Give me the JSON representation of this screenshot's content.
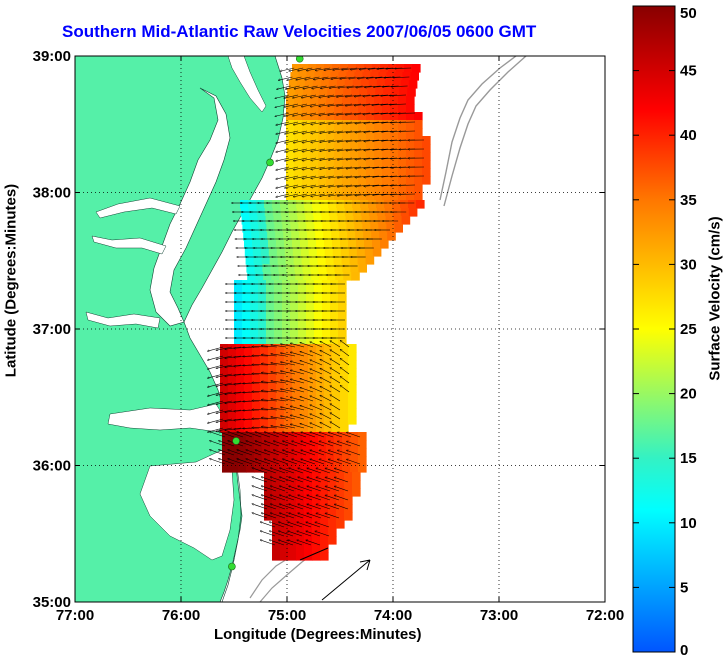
{
  "title": "Southern Mid-Atlantic Raw Velocities 2007/06/05 0600 GMT",
  "xlabel": "Longitude (Degrees:Minutes)",
  "ylabel": "Latitude (Degrees:Minutes)",
  "x_ticks": [
    "77:00",
    "76:00",
    "75:00",
    "74:00",
    "73:00",
    "72:00"
  ],
  "y_ticks": [
    "39:00",
    "38:00",
    "37:00",
    "36:00",
    "35:00"
  ],
  "colorbar": {
    "label": "Surface Velocity (cm/s)",
    "ticks": [
      "50",
      "45",
      "40",
      "35",
      "30",
      "25",
      "20",
      "15",
      "10",
      "5",
      "0"
    ],
    "range": [
      0,
      50
    ],
    "colormap": "jet"
  },
  "colors": {
    "land": "#55f0a8",
    "title": "#0000ff",
    "grid": "#000000",
    "bathymetry": "#999999",
    "station": "#33dd33"
  },
  "map": {
    "lon_range": [
      -77,
      -72
    ],
    "lat_range": [
      35,
      39
    ],
    "stations": [
      {
        "lon": -74.88,
        "lat": 38.98
      },
      {
        "lon": -75.16,
        "lat": 38.22
      },
      {
        "lon": -75.48,
        "lat": 36.18
      },
      {
        "lon": -75.52,
        "lat": 35.26
      }
    ]
  }
}
